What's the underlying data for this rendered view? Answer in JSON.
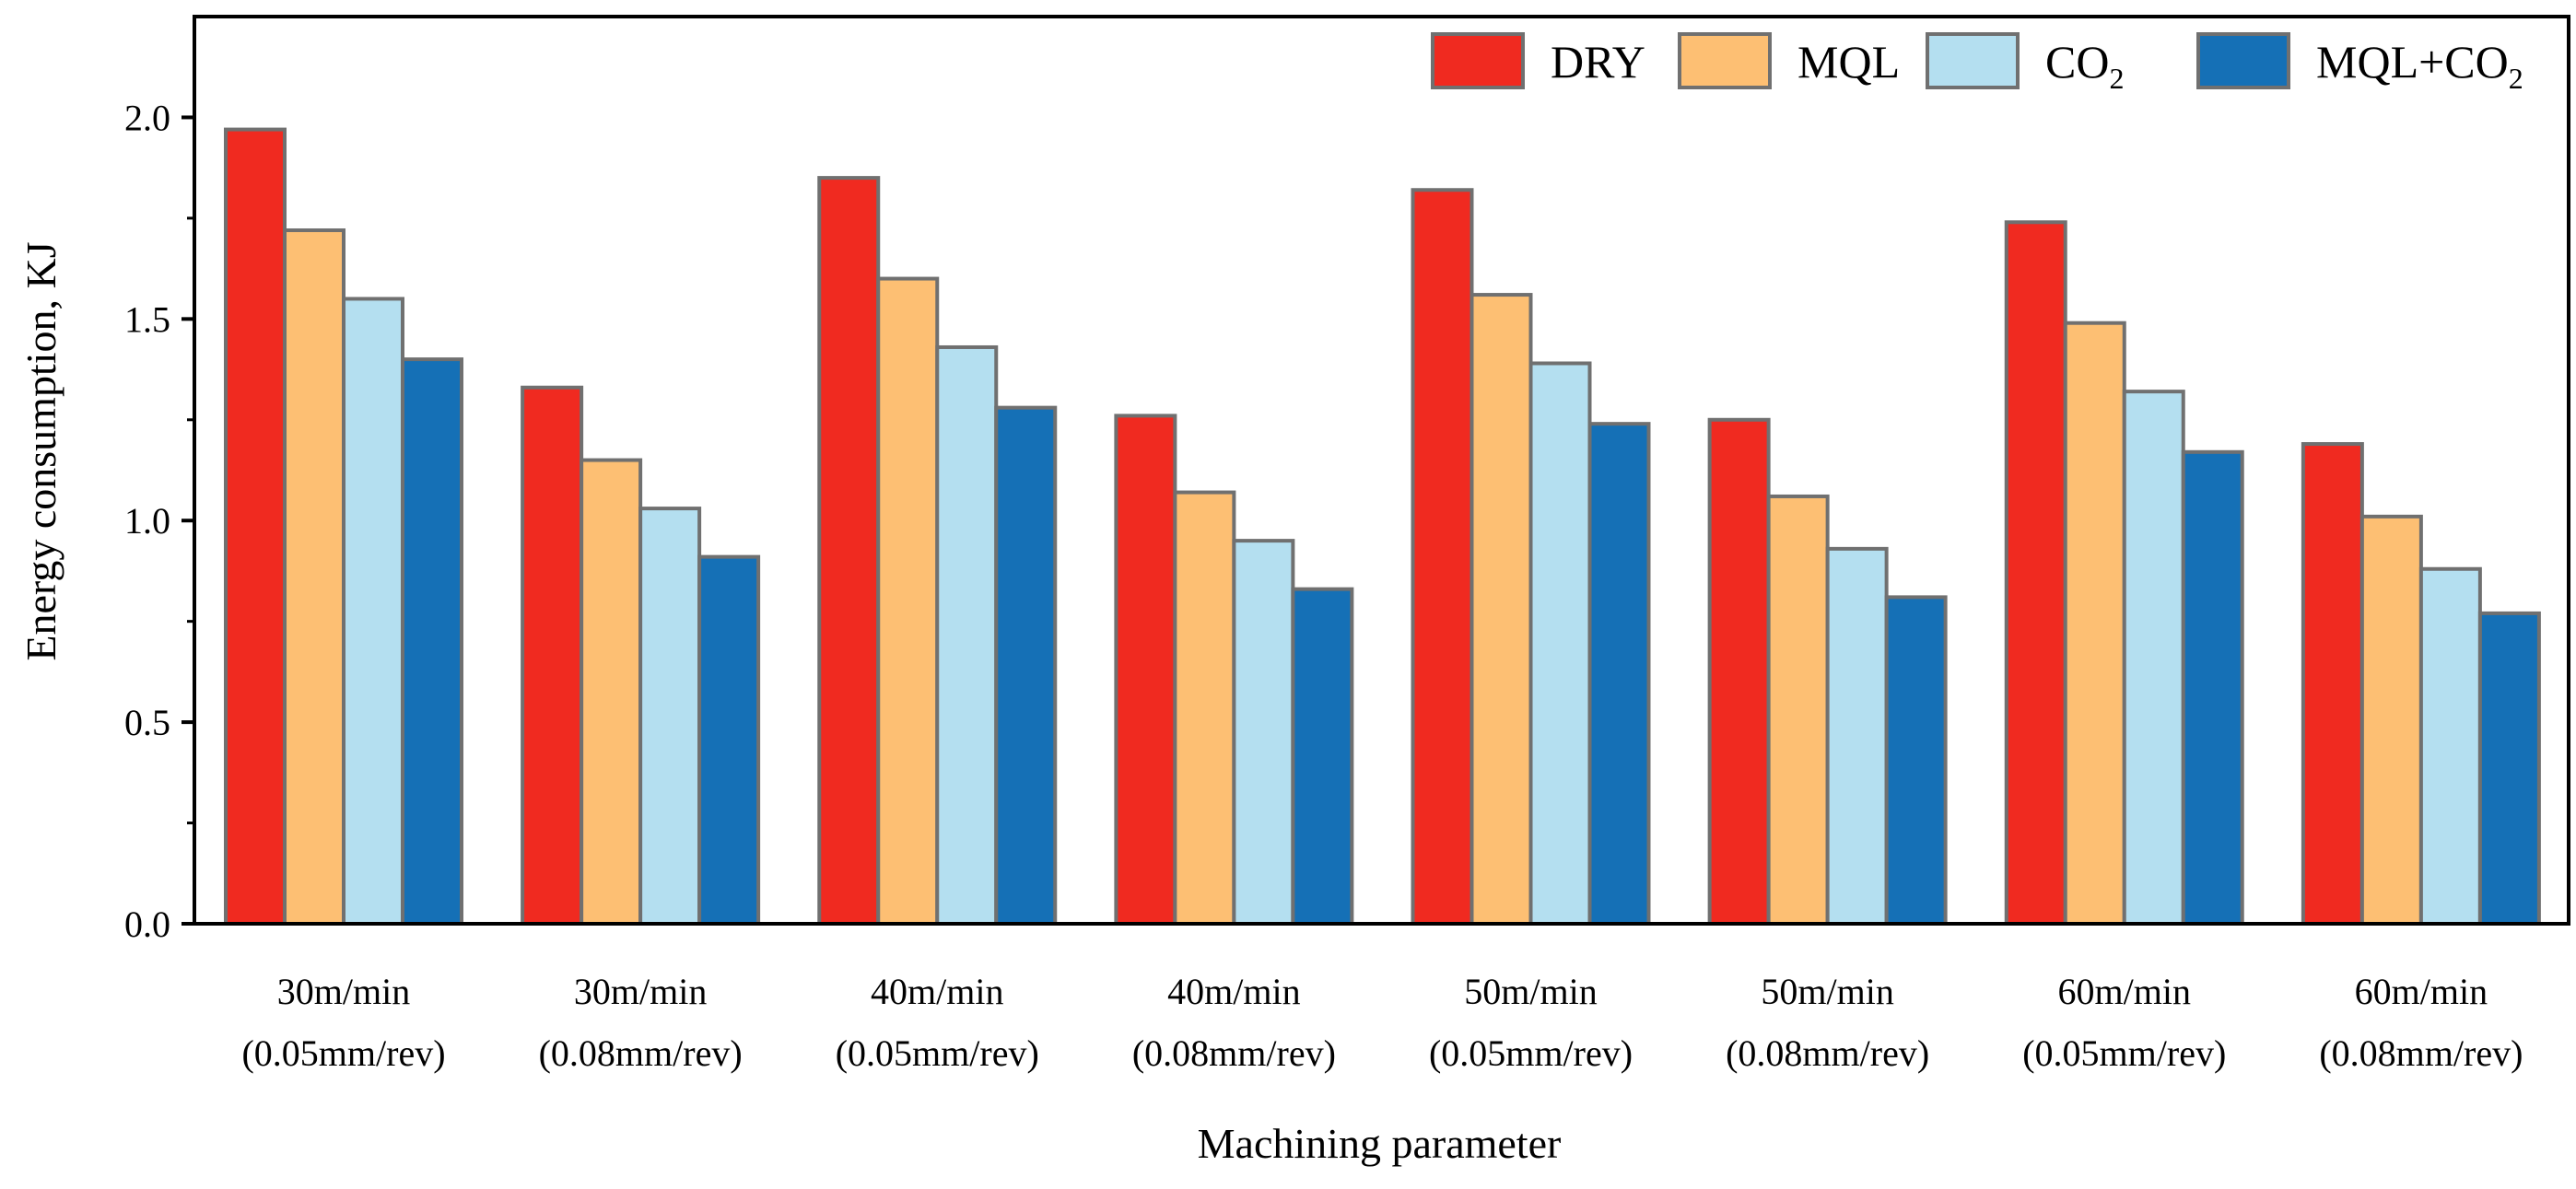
{
  "chart_data": {
    "type": "bar",
    "title": "",
    "xlabel": "Machining parameter",
    "ylabel": "Energy consumption, KJ",
    "ylim": [
      0,
      2.25
    ],
    "yticks": [
      0.0,
      0.5,
      1.0,
      1.5,
      2.0
    ],
    "ytick_labels": [
      "0.0",
      "0.5",
      "1.0",
      "1.5",
      "2.0"
    ],
    "legend_position": "top-right",
    "categories": [
      {
        "line1": "30m/min",
        "line2": "(0.05mm/rev)"
      },
      {
        "line1": "30m/min",
        "line2": "(0.08mm/rev)"
      },
      {
        "line1": "40m/min",
        "line2": "(0.05mm/rev)"
      },
      {
        "line1": "40m/min",
        "line2": "(0.08mm/rev)"
      },
      {
        "line1": "50m/min",
        "line2": "(0.05mm/rev)"
      },
      {
        "line1": "50m/min",
        "line2": "(0.08mm/rev)"
      },
      {
        "line1": "60m/min",
        "line2": "(0.05mm/rev)"
      },
      {
        "line1": "60m/min",
        "line2": "(0.08mm/rev)"
      }
    ],
    "series": [
      {
        "name": "DRY",
        "label_main": "DRY",
        "label_sub": "",
        "label_tail": "",
        "color": "#f02a20",
        "values": [
          1.97,
          1.33,
          1.85,
          1.26,
          1.82,
          1.25,
          1.74,
          1.19
        ]
      },
      {
        "name": "MQL",
        "label_main": "MQL",
        "label_sub": "",
        "label_tail": "",
        "color": "#fdbf73",
        "values": [
          1.72,
          1.15,
          1.6,
          1.07,
          1.56,
          1.06,
          1.49,
          1.01
        ]
      },
      {
        "name": "CO2",
        "label_main": "CO",
        "label_sub": "2",
        "label_tail": "",
        "color": "#b4dff0",
        "values": [
          1.55,
          1.03,
          1.43,
          0.95,
          1.39,
          0.93,
          1.32,
          0.88
        ]
      },
      {
        "name": "MQL+CO2",
        "label_main": "MQL+CO",
        "label_sub": "2",
        "label_tail": "",
        "color": "#1570b6",
        "values": [
          1.4,
          0.91,
          1.28,
          0.83,
          1.24,
          0.81,
          1.17,
          0.77
        ]
      }
    ],
    "bar_edge_color": "#707070",
    "axis_color": "#000000"
  }
}
